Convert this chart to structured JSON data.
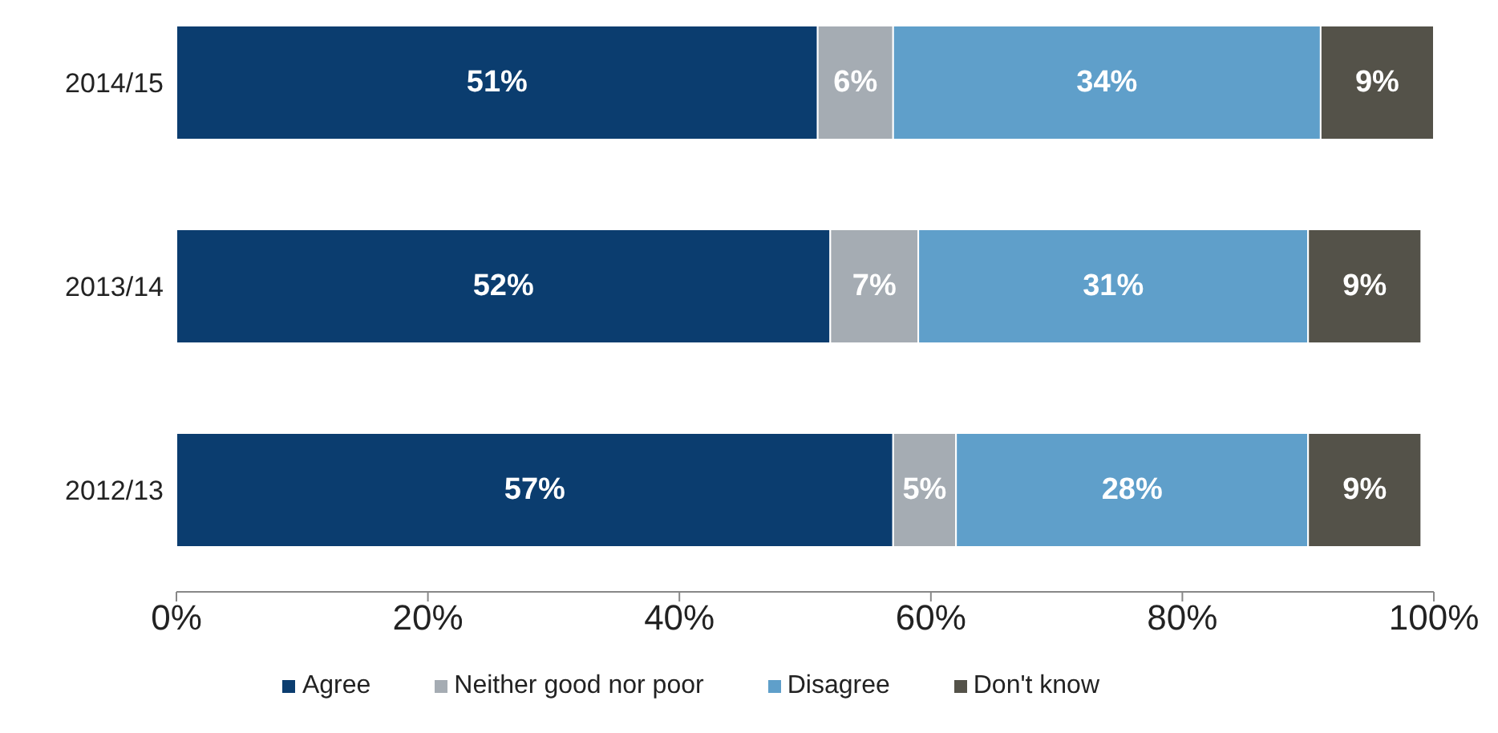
{
  "chart_data": {
    "type": "bar",
    "orientation": "horizontal",
    "stacked": true,
    "categories": [
      "2014/15",
      "2013/14",
      "2012/13"
    ],
    "series": [
      {
        "name": "Agree",
        "color": "#0b3d6f",
        "values": [
          51,
          52,
          57
        ],
        "value_labels": [
          "51%",
          "52%",
          "57%"
        ]
      },
      {
        "name": "Neither good nor poor",
        "color": "#a5acb3",
        "values": [
          6,
          7,
          5
        ],
        "value_labels": [
          "6%",
          "7%",
          "5%"
        ]
      },
      {
        "name": "Disagree",
        "color": "#5f9fca",
        "values": [
          34,
          31,
          28
        ],
        "value_labels": [
          "34%",
          "31%",
          "28%"
        ]
      },
      {
        "name": "Don't know",
        "color": "#545249",
        "values": [
          9,
          9,
          9
        ],
        "value_labels": [
          "9%",
          "9%",
          "9%"
        ]
      }
    ],
    "xlim": [
      0,
      100
    ],
    "xticks": [
      {
        "value": 0,
        "label": "0%"
      },
      {
        "value": 20,
        "label": "20%"
      },
      {
        "value": 40,
        "label": "40%"
      },
      {
        "value": 60,
        "label": "60%"
      },
      {
        "value": 80,
        "label": "80%"
      },
      {
        "value": 100,
        "label": "100%"
      }
    ],
    "grid": false,
    "legend": "bottom"
  }
}
